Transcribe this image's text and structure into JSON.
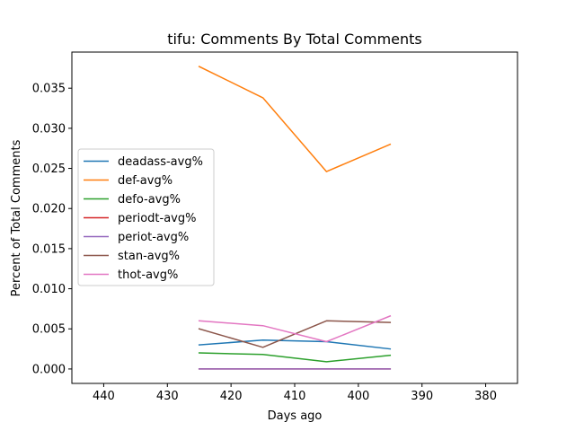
{
  "chart_data": {
    "type": "line",
    "title": "tifu: Comments By Total Comments",
    "xlabel": "Days ago",
    "ylabel": "Percent of Total Comments",
    "x_inverted": true,
    "xlim": [
      445,
      375
    ],
    "ylim": [
      -0.0018,
      0.0395
    ],
    "xticks": [
      440,
      430,
      420,
      410,
      400,
      390,
      380
    ],
    "xtick_labels": [
      "440",
      "430",
      "420",
      "410",
      "400",
      "390",
      "380"
    ],
    "yticks": [
      0.0,
      0.005,
      0.01,
      0.015,
      0.02,
      0.025,
      0.03,
      0.035
    ],
    "ytick_labels": [
      "0.000",
      "0.005",
      "0.010",
      "0.015",
      "0.020",
      "0.025",
      "0.030",
      "0.035"
    ],
    "grid": false,
    "legend_position": "center-left",
    "x": [
      425,
      415,
      405,
      395
    ],
    "series": [
      {
        "name": "deadass-avg%",
        "color": "#1f77b4",
        "values": [
          0.003,
          0.0036,
          0.0034,
          0.0025
        ]
      },
      {
        "name": "def-avg%",
        "color": "#ff7f0e",
        "values": [
          0.0377,
          0.0338,
          0.0246,
          0.028
        ]
      },
      {
        "name": "defo-avg%",
        "color": "#2ca02c",
        "values": [
          0.002,
          0.0018,
          0.0009,
          0.0017
        ]
      },
      {
        "name": "periodt-avg%",
        "color": "#d62728",
        "values": [
          0.0,
          0.0,
          0.0,
          0.0
        ]
      },
      {
        "name": "periot-avg%",
        "color": "#9467bd",
        "values": [
          0.0,
          0.0,
          0.0,
          0.0
        ]
      },
      {
        "name": "stan-avg%",
        "color": "#8c564b",
        "values": [
          0.005,
          0.0027,
          0.006,
          0.0058
        ]
      },
      {
        "name": "thot-avg%",
        "color": "#e377c2",
        "values": [
          0.006,
          0.0054,
          0.0034,
          0.0066
        ]
      }
    ]
  }
}
